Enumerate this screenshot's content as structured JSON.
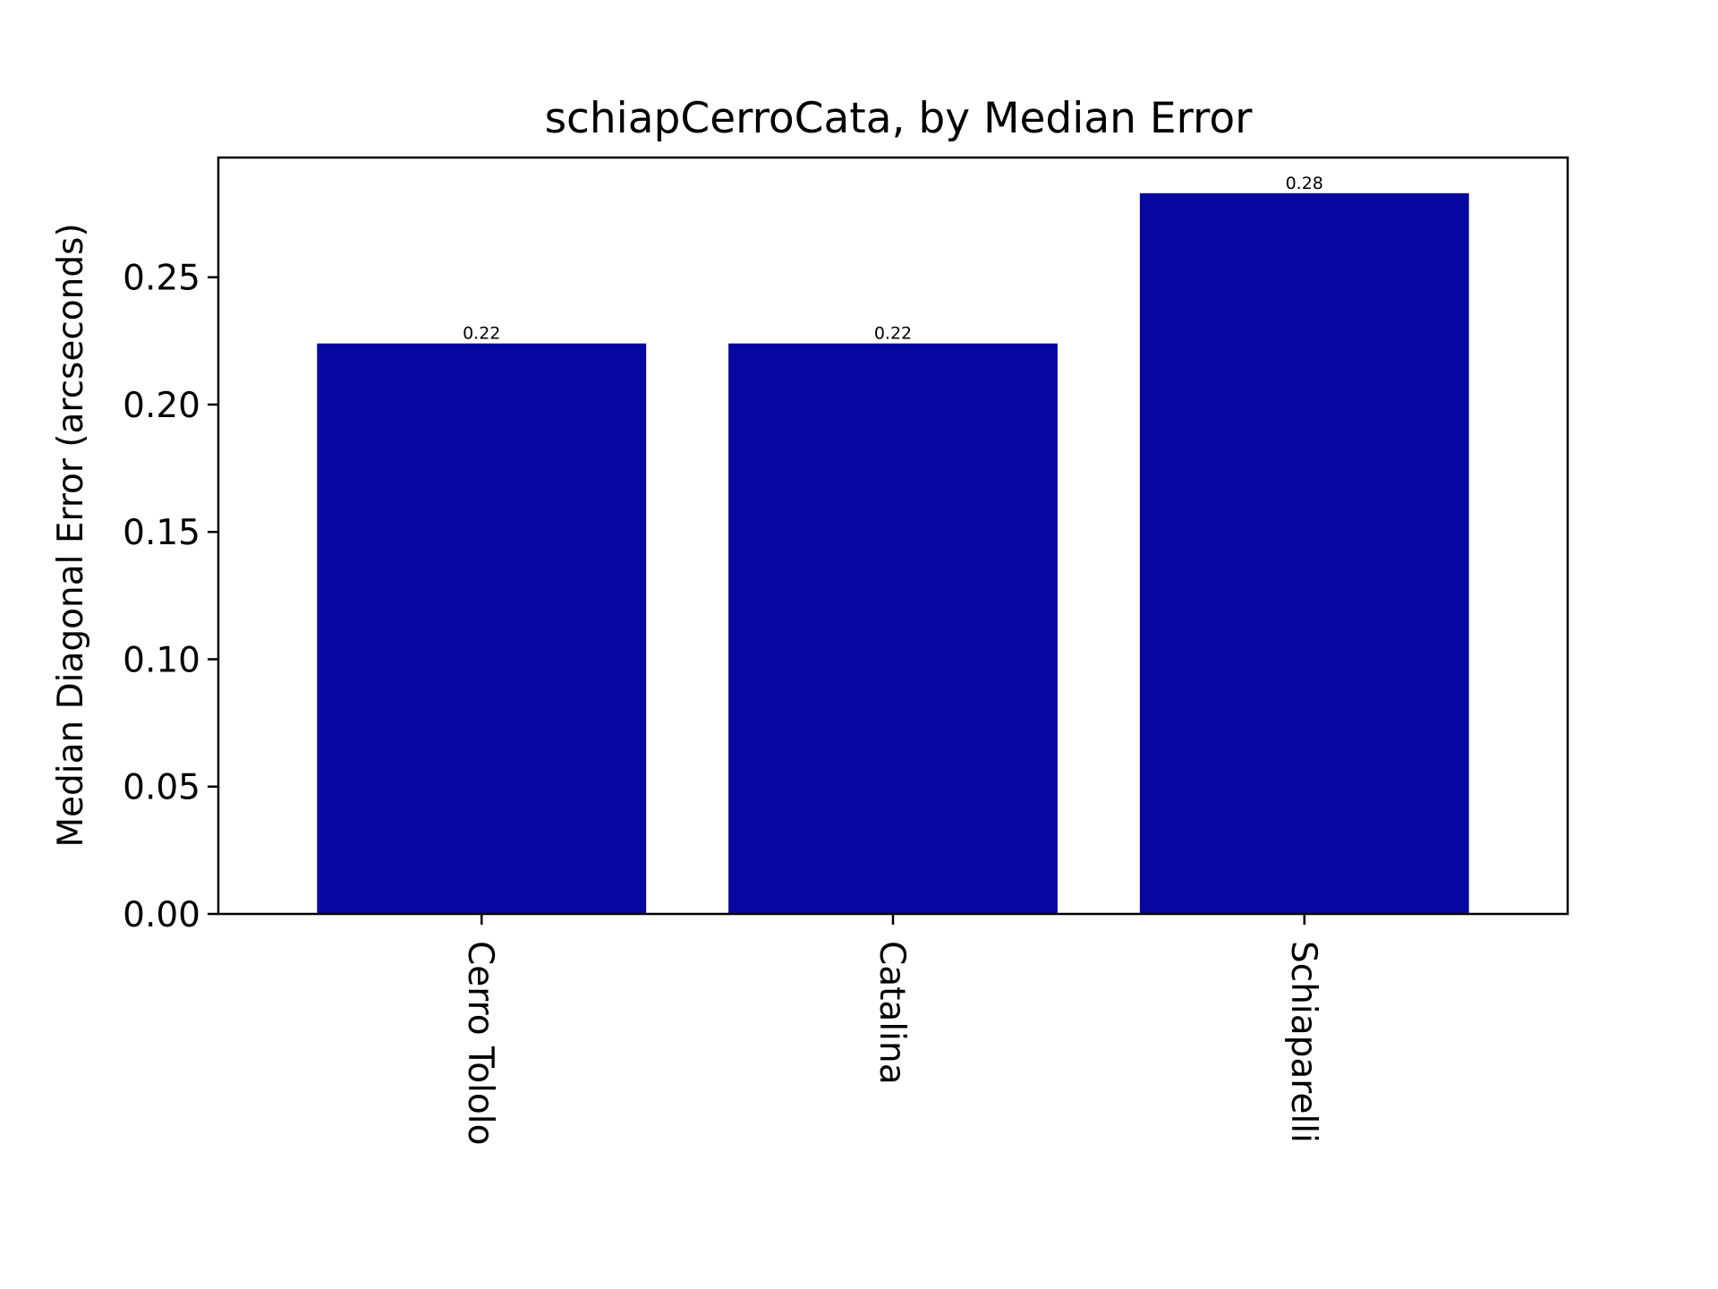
{
  "chart_data": {
    "type": "bar",
    "title": "schiapCerroCata, by Median Error",
    "xlabel": "",
    "ylabel": "Median Diagonal Error (arcseconds)",
    "categories": [
      "Cerro Tololo",
      "Catalina",
      "Schiaparelli"
    ],
    "values": [
      0.224,
      0.224,
      0.283
    ],
    "value_labels": [
      "0.22",
      "0.22",
      "0.28"
    ],
    "ylim": [
      0,
      0.297
    ],
    "yticks": [
      0.0,
      0.05,
      0.1,
      0.15,
      0.2,
      0.25
    ],
    "ytick_labels": [
      "0.00",
      "0.05",
      "0.10",
      "0.15",
      "0.20",
      "0.25"
    ],
    "bar_color": "#0707a0",
    "grid": false,
    "legend": "none",
    "xtick_rotation": "vertical"
  }
}
